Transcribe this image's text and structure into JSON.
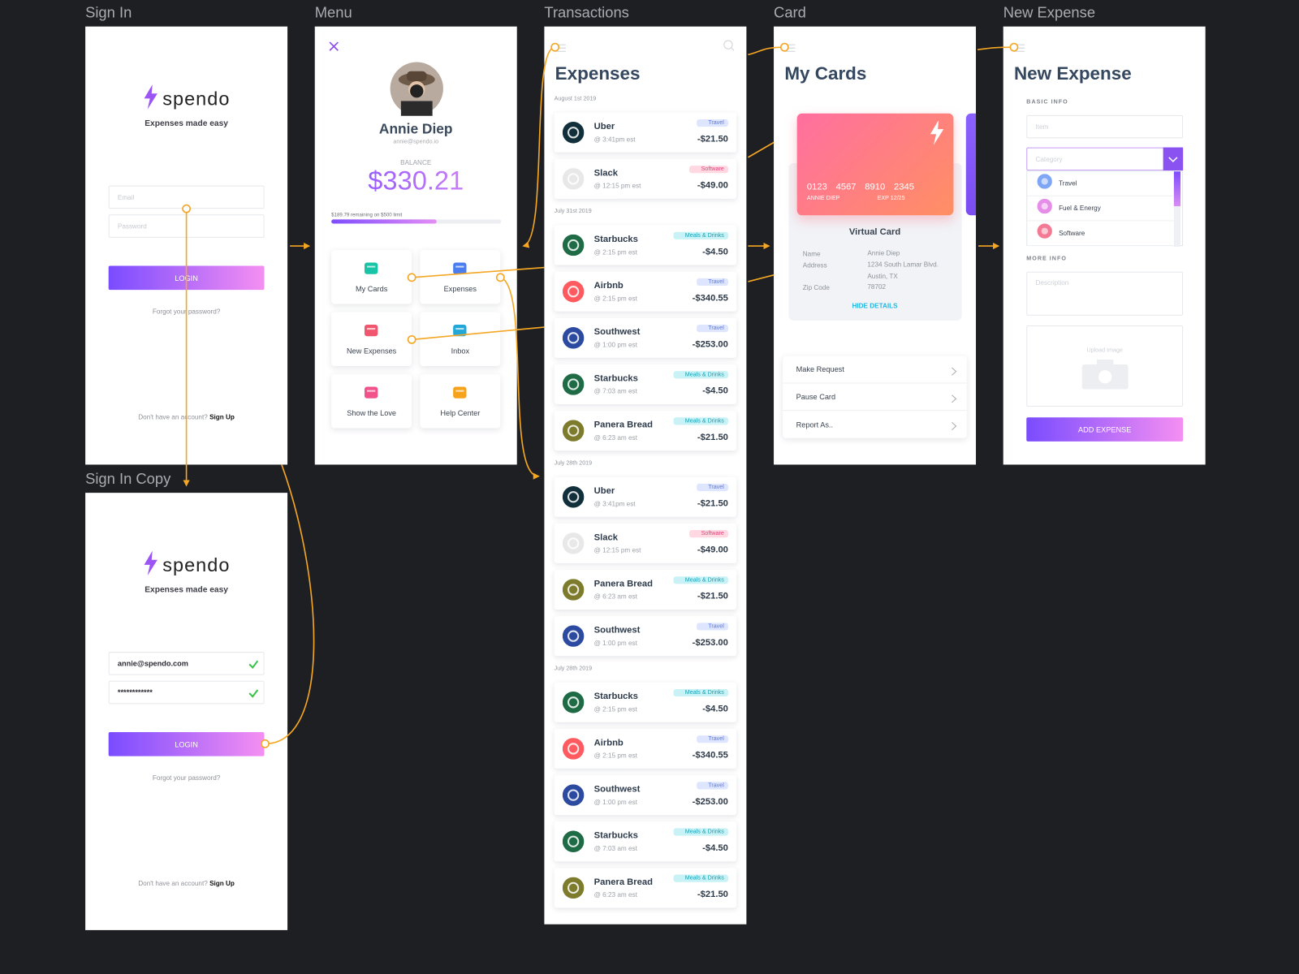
{
  "sign_in": {
    "label": "Sign In",
    "logo": "spendo",
    "tagline": "Expenses made easy",
    "email": "Email",
    "password": "Password",
    "button": "LOGIN",
    "forgot": "Forgot your password?",
    "signup_prompt": "Don't have an account?",
    "signup_link": "Sign Up"
  },
  "sign_in_copy": {
    "label": "Sign In Copy",
    "logo": "spendo",
    "tagline": "Expenses made easy",
    "email": "annie@spendo.com",
    "password": "************",
    "button": "LOGIN",
    "forgot": "Forgot your password?",
    "signup_prompt": "Don't have an account?",
    "signup_link": "Sign Up"
  },
  "menu": {
    "label": "Menu",
    "name": "Annie Diep",
    "email": "annie@spendo.io",
    "balance_label": "BALANCE",
    "balance": "$330.21",
    "limit_note": "$189.79 remaining on $500 limit",
    "tiles": [
      {
        "label": "My Cards",
        "color": "#19c3a6"
      },
      {
        "label": "Expenses",
        "color": "#4a7ef0"
      },
      {
        "label": "New Expenses",
        "color": "#f0576f"
      },
      {
        "label": "Inbox",
        "color": "#21a7d8"
      },
      {
        "label": "Show the Love",
        "color": "#f2528a"
      },
      {
        "label": "Help Center",
        "color": "#f7a21b"
      }
    ]
  },
  "transactions": {
    "label": "Transactions",
    "title": "Expenses",
    "icon_colors": {
      "Uber": "#12303b",
      "Slack": "#e8e8e8",
      "Starbucks": "#1e6b45",
      "Airbnb": "#ff5a5f",
      "Southwest": "#2b4aa0",
      "Panera Bread": "#7d7b2c"
    },
    "badge_colors": {
      "Travel": [
        "#dde5ff",
        "#5b79e0"
      ],
      "Software": [
        "#ffd8e2",
        "#e2457b"
      ],
      "Meals & Drinks": [
        "#c8f2f6",
        "#17a1b4"
      ]
    },
    "groups": [
      {
        "date": "August 1st 2019",
        "items": [
          {
            "merchant": "Uber",
            "time": "@ 3:41pm est",
            "category": "Travel",
            "amount": "-$21.50"
          },
          {
            "merchant": "Slack",
            "time": "@ 12:15 pm est",
            "category": "Software",
            "amount": "-$49.00"
          }
        ]
      },
      {
        "date": "July 31st 2019",
        "items": [
          {
            "merchant": "Starbucks",
            "time": "@ 2:15 pm est",
            "category": "Meals & Drinks",
            "amount": "-$4.50"
          },
          {
            "merchant": "Airbnb",
            "time": "@ 2:15 pm est",
            "category": "Travel",
            "amount": "-$340.55"
          },
          {
            "merchant": "Southwest",
            "time": "@ 1:00 pm est",
            "category": "Travel",
            "amount": "-$253.00"
          },
          {
            "merchant": "Starbucks",
            "time": "@ 7:03 am est",
            "category": "Meals & Drinks",
            "amount": "-$4.50"
          },
          {
            "merchant": "Panera Bread",
            "time": "@ 6:23 am est",
            "category": "Meals & Drinks",
            "amount": "-$21.50"
          }
        ]
      },
      {
        "date": "July 28th 2019",
        "items": [
          {
            "merchant": "Uber",
            "time": "@ 3:41pm est",
            "category": "Travel",
            "amount": "-$21.50"
          },
          {
            "merchant": "Slack",
            "time": "@ 12:15 pm est",
            "category": "Software",
            "amount": "-$49.00"
          },
          {
            "merchant": "Panera Bread",
            "time": "@ 6:23 am est",
            "category": "Meals & Drinks",
            "amount": "-$21.50"
          },
          {
            "merchant": "Southwest",
            "time": "@ 1:00 pm est",
            "category": "Travel",
            "amount": "-$253.00"
          }
        ]
      },
      {
        "date": "July 28th 2019",
        "items": [
          {
            "merchant": "Starbucks",
            "time": "@ 2:15 pm est",
            "category": "Meals & Drinks",
            "amount": "-$4.50"
          },
          {
            "merchant": "Airbnb",
            "time": "@ 2:15 pm est",
            "category": "Travel",
            "amount": "-$340.55"
          },
          {
            "merchant": "Southwest",
            "time": "@ 1:00 pm est",
            "category": "Travel",
            "amount": "-$253.00"
          },
          {
            "merchant": "Starbucks",
            "time": "@ 7:03 am est",
            "category": "Meals & Drinks",
            "amount": "-$4.50"
          },
          {
            "merchant": "Panera Bread",
            "time": "@ 6:23 am est",
            "category": "Meals & Drinks",
            "amount": "-$21.50"
          }
        ]
      }
    ]
  },
  "card": {
    "label": "Card",
    "title": "My Cards",
    "number": [
      "0123",
      "4567",
      "8910",
      "2345"
    ],
    "holder": "ANNIE DIEP",
    "expiry": "EXP 12/25",
    "card_type": "Virtual Card",
    "details": [
      {
        "label": "Name",
        "value": "Annie Diep"
      },
      {
        "label": "Address",
        "value": "1234 South Lamar Blvd. Austin, TX"
      },
      {
        "label": "Zip Code",
        "value": "78702"
      }
    ],
    "hide": "HIDE DETAILS",
    "actions": [
      "Make Request",
      "Pause Card",
      "Report As.."
    ]
  },
  "new_expense": {
    "label": "New Expense",
    "title": "New Expense",
    "basic_info": "BASIC INFO",
    "item": "Item",
    "category": "Category",
    "options": [
      {
        "label": "Travel",
        "color": "#7fa6f5"
      },
      {
        "label": "Fuel & Energy",
        "color": "#e58ee8"
      },
      {
        "label": "Software",
        "color": "#f37a95"
      }
    ],
    "more_info": "MORE INFO",
    "description": "Description",
    "upload": "Upload Image",
    "button": "ADD EXPENSE"
  }
}
